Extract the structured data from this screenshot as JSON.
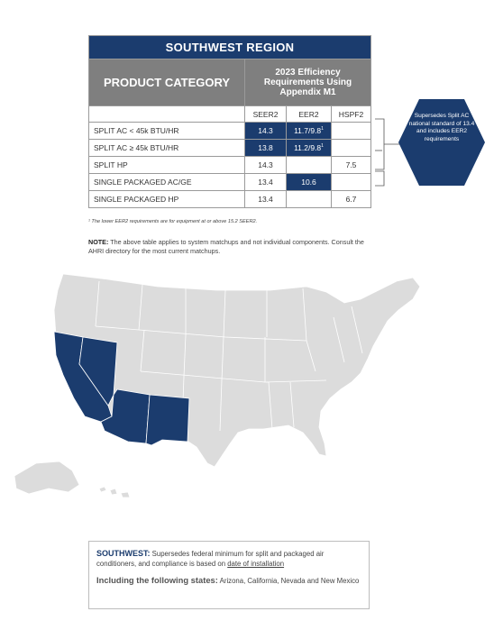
{
  "table": {
    "region_title": "SOUTHWEST REGION",
    "category_header": "PRODUCT CATEGORY",
    "requirements_header": "2023 Efficiency Requirements Using Appendix M1",
    "columns": [
      "SEER2",
      "EER2",
      "HSPF2"
    ],
    "rows": [
      {
        "category": "SPLIT AC < 45k BTU/HR",
        "seer2": "14.3",
        "eer2": "11.7/9.8",
        "hspf2": ""
      },
      {
        "category": "SPLIT AC ≥ 45k BTU/HR",
        "seer2": "13.8",
        "eer2": "11.2/9.8",
        "hspf2": ""
      },
      {
        "category": "SPLIT HP",
        "seer2": "14.3",
        "eer2": "",
        "hspf2": "7.5"
      },
      {
        "category": "SINGLE PACKAGED AC/GE",
        "seer2": "13.4",
        "eer2": "10.6",
        "hspf2": ""
      },
      {
        "category": "SINGLE PACKAGED HP",
        "seer2": "13.4",
        "eer2": "",
        "hspf2": "6.7"
      }
    ],
    "footnote_mark": "1"
  },
  "footnote": "¹ The lower EER2 requirements are for equipment at or above 15.2 SEER2.",
  "note": {
    "label": "NOTE:",
    "text": " The above table applies to system matchups and not individual components. Consult the AHRI directory for the most current matchups."
  },
  "callout": {
    "text": "Supersedes Split AC national standard of 13.4 and includes EER2 requirements"
  },
  "map": {
    "highlight_color": "#1b3c6e",
    "base_color": "#dcdcdc",
    "highlighted_states": [
      "California",
      "Nevada",
      "Arizona",
      "New Mexico"
    ]
  },
  "summary": {
    "label": "SOUTHWEST:",
    "text_1": " Supersedes federal minimum for split and packaged air conditioners, and compliance is based on ",
    "link_text": "date of installation",
    "states_label": "Including the following states:",
    "states_text": " Arizona, California, Nevada and New Mexico"
  }
}
